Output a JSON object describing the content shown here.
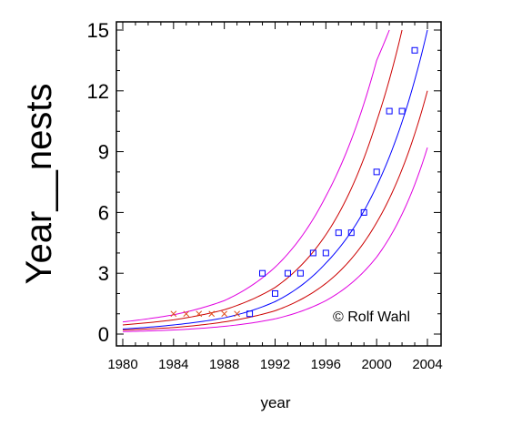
{
  "chart_data": {
    "type": "scatter",
    "title": "",
    "xlabel": "year",
    "ylabel": "Year__nests",
    "xlim": [
      1980,
      2004
    ],
    "ylim": [
      0,
      15
    ],
    "xticks": [
      1980,
      1984,
      1988,
      1992,
      1996,
      2000,
      2004
    ],
    "yticks": [
      0,
      3,
      6,
      9,
      12,
      15
    ],
    "grid": false,
    "annotation": "© Rolf Wahl",
    "colors": {
      "fit": "#0000ff",
      "confidence_band": "#cc0000",
      "prediction_band": "#e000e0",
      "observed": "#0000ff",
      "excluded": "#e05020"
    },
    "series": [
      {
        "kind": "points",
        "marker": "x",
        "x": [
          1984,
          1985,
          1986,
          1987,
          1988,
          1989
        ],
        "y": [
          1,
          1,
          1,
          1,
          1,
          1
        ]
      },
      {
        "kind": "points",
        "marker": "square",
        "x": [
          1990,
          1991,
          1992,
          1993,
          1994,
          1995,
          1996,
          1997,
          1998,
          1999,
          2000,
          2001,
          2002,
          2003
        ],
        "y": [
          1,
          3,
          2,
          3,
          3,
          4,
          4,
          5,
          5,
          6,
          8,
          11,
          11,
          14
        ]
      },
      {
        "kind": "curve",
        "role": "fit",
        "x": [
          1980,
          1984,
          1988,
          1992,
          1996,
          2000,
          2004
        ],
        "y": [
          0.25,
          0.45,
          0.8,
          1.6,
          3.5,
          7.3,
          15.0
        ]
      },
      {
        "kind": "curve",
        "role": "confidence-upper",
        "x": [
          1980,
          1984,
          1988,
          1992,
          1996,
          2000,
          2002
        ],
        "y": [
          0.45,
          0.7,
          1.2,
          2.3,
          4.9,
          10.5,
          15.0
        ]
      },
      {
        "kind": "curve",
        "role": "confidence-lower",
        "x": [
          1980,
          1984,
          1988,
          1992,
          1996,
          2000,
          2004
        ],
        "y": [
          0.2,
          0.32,
          0.6,
          1.15,
          2.5,
          5.5,
          12.0
        ]
      },
      {
        "kind": "curve",
        "role": "prediction-upper",
        "x": [
          1980,
          1984,
          1988,
          1992,
          1996,
          2000,
          2001
        ],
        "y": [
          0.6,
          0.95,
          1.65,
          3.3,
          6.8,
          13.5,
          15.0
        ]
      },
      {
        "kind": "curve",
        "role": "prediction-lower",
        "x": [
          1980,
          1984,
          1988,
          1992,
          1996,
          2000,
          2004
        ],
        "y": [
          0.12,
          0.2,
          0.38,
          0.75,
          1.65,
          3.8,
          9.2
        ]
      }
    ]
  }
}
